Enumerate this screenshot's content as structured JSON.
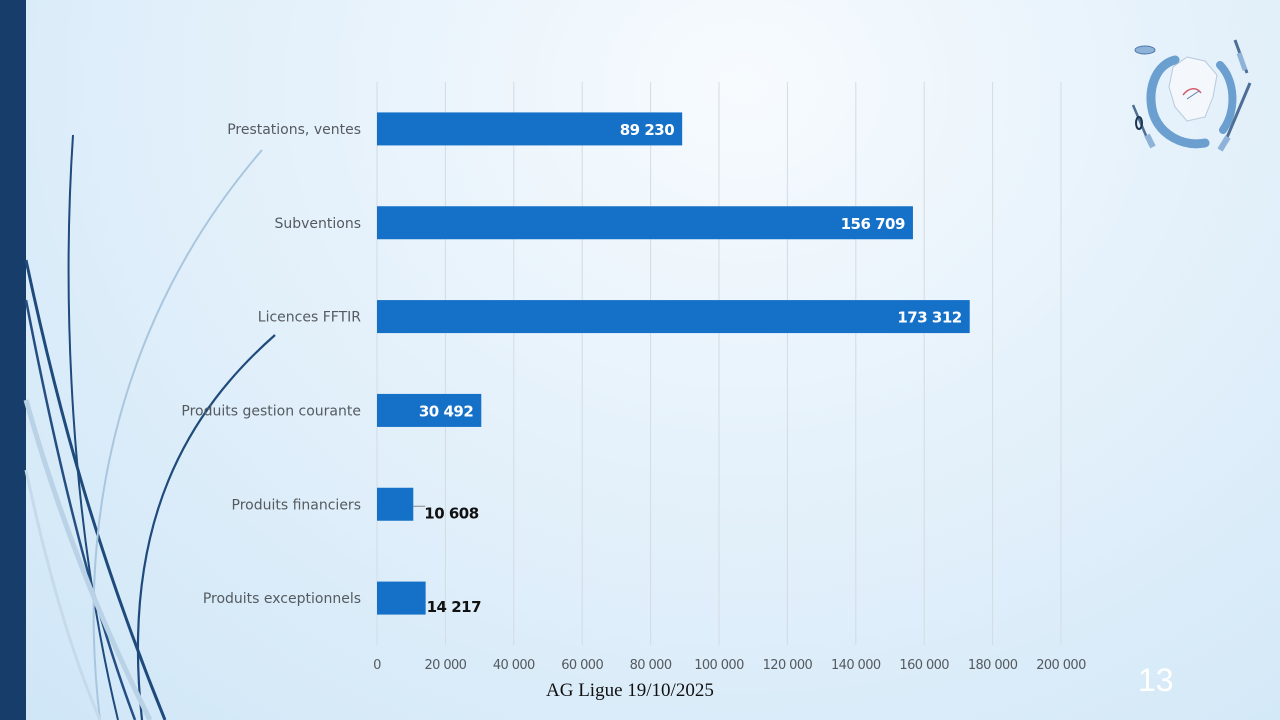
{
  "slide": {
    "footer": "AG Ligue 19/10/2025",
    "page_number": "13"
  },
  "chart_data": {
    "type": "bar",
    "orientation": "horizontal",
    "categories": [
      "Prestations, ventes",
      "Subventions",
      "Licences FFTIR",
      "Produits gestion courante",
      "Produits financiers",
      "Produits exceptionnels"
    ],
    "values": [
      89230,
      156709,
      173312,
      30492,
      10608,
      14217
    ],
    "value_labels": [
      "89 230",
      "156 709",
      "173 312",
      "30 492",
      "10 608",
      "14 217"
    ],
    "xlim": [
      0,
      200000
    ],
    "x_ticks": [
      0,
      20000,
      40000,
      60000,
      80000,
      100000,
      120000,
      140000,
      160000,
      180000,
      200000
    ],
    "x_tick_labels": [
      "0",
      "20 000",
      "40 000",
      "60 000",
      "80 000",
      "100 000",
      "120 000",
      "140 000",
      "160 000",
      "180 000",
      "200 000"
    ],
    "grid": true,
    "bar_color": "#1570c8"
  }
}
